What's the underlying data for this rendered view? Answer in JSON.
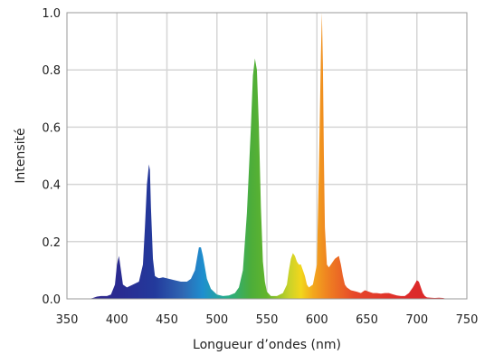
{
  "chart_data": {
    "type": "area",
    "title": "",
    "xlabel": "Longueur d’ondes (nm)",
    "ylabel": "Intensité",
    "xlim": [
      350,
      750
    ],
    "ylim": [
      0,
      1.0
    ],
    "x_ticks": [
      350,
      400,
      450,
      500,
      550,
      600,
      650,
      700,
      750
    ],
    "x_tick_labels": [
      "350",
      "400",
      "450",
      "500",
      "550",
      "600",
      "650",
      "700",
      "750"
    ],
    "y_ticks": [
      0.0,
      0.2,
      0.4,
      0.6,
      0.8,
      1.0
    ],
    "y_tick_labels": [
      "0.0",
      "0.2",
      "0.4",
      "0.6",
      "0.8",
      "1.0"
    ],
    "grid": true,
    "legend": "none",
    "fill": "wavelength-colored spectrum",
    "series": [
      {
        "x": [
          372,
          376,
          380,
          384,
          390,
          394,
          398,
          400,
          402,
          404,
          406,
          410,
          416,
          422,
          426,
          428,
          430,
          432,
          433,
          434,
          436,
          438,
          440,
          442,
          446,
          452,
          458,
          464,
          470,
          474,
          478,
          480,
          482,
          484,
          486,
          488,
          490,
          494,
          500,
          506,
          512,
          518,
          522,
          526,
          530,
          534,
          536,
          538,
          540,
          542,
          544,
          546,
          548,
          550,
          554,
          560,
          566,
          570,
          572,
          574,
          576,
          578,
          580,
          582,
          584,
          586,
          588,
          590,
          592,
          596,
          600,
          602,
          604,
          605,
          606,
          607,
          608,
          610,
          612,
          614,
          616,
          618,
          620,
          622,
          624,
          626,
          628,
          630,
          634,
          640,
          644,
          648,
          652,
          656,
          660,
          664,
          668,
          672,
          676,
          680,
          684,
          688,
          692,
          696,
          700,
          702,
          704,
          706,
          708,
          710,
          714,
          718,
          722,
          726,
          730
        ],
        "y": [
          0.0,
          0.003,
          0.008,
          0.01,
          0.01,
          0.015,
          0.05,
          0.12,
          0.15,
          0.1,
          0.05,
          0.04,
          0.05,
          0.06,
          0.12,
          0.25,
          0.4,
          0.47,
          0.45,
          0.32,
          0.14,
          0.08,
          0.075,
          0.072,
          0.075,
          0.07,
          0.065,
          0.06,
          0.06,
          0.07,
          0.1,
          0.14,
          0.18,
          0.18,
          0.15,
          0.11,
          0.07,
          0.035,
          0.015,
          0.01,
          0.012,
          0.02,
          0.04,
          0.1,
          0.3,
          0.6,
          0.78,
          0.84,
          0.8,
          0.6,
          0.32,
          0.13,
          0.06,
          0.025,
          0.01,
          0.01,
          0.02,
          0.05,
          0.1,
          0.14,
          0.16,
          0.15,
          0.13,
          0.12,
          0.12,
          0.1,
          0.08,
          0.05,
          0.04,
          0.05,
          0.12,
          0.45,
          0.85,
          1.0,
          0.82,
          0.5,
          0.25,
          0.12,
          0.11,
          0.12,
          0.13,
          0.14,
          0.145,
          0.15,
          0.12,
          0.08,
          0.05,
          0.04,
          0.03,
          0.025,
          0.02,
          0.03,
          0.025,
          0.02,
          0.02,
          0.018,
          0.02,
          0.02,
          0.016,
          0.012,
          0.01,
          0.01,
          0.02,
          0.04,
          0.065,
          0.06,
          0.04,
          0.02,
          0.01,
          0.005,
          0.004,
          0.003,
          0.004,
          0.003,
          0.0
        ]
      }
    ]
  }
}
